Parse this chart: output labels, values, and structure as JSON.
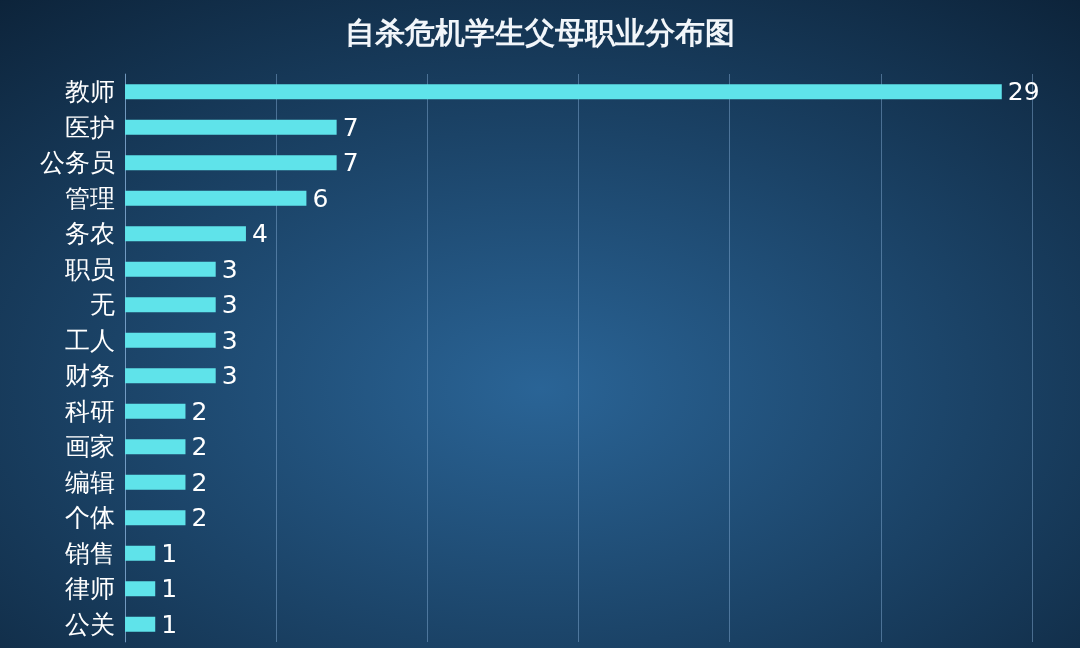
{
  "chart_data": {
    "type": "bar",
    "orientation": "horizontal",
    "title": "自杀危机学生父母职业分布图",
    "categories": [
      "教师",
      "医护",
      "公务员",
      "管理",
      "务农",
      "职员",
      "无",
      "工人",
      "财务",
      "科研",
      "画家",
      "编辑",
      "个体",
      "销售",
      "律师",
      "公关"
    ],
    "values": [
      29,
      7,
      7,
      6,
      4,
      3,
      3,
      3,
      3,
      2,
      2,
      2,
      2,
      1,
      1,
      1
    ],
    "color": "#5fe3ea",
    "xlim": [
      0,
      30
    ],
    "xticks": [
      {
        "value": 0,
        "label": null
      },
      {
        "value": 5,
        "label": null
      },
      {
        "value": 10,
        "label": null
      },
      {
        "value": 15,
        "label": null
      },
      {
        "value": 20,
        "label": null
      },
      {
        "value": 25,
        "label": null
      },
      {
        "value": 30,
        "label": null
      }
    ],
    "grid": "x",
    "tick_labels": "y",
    "data_labels": true
  }
}
